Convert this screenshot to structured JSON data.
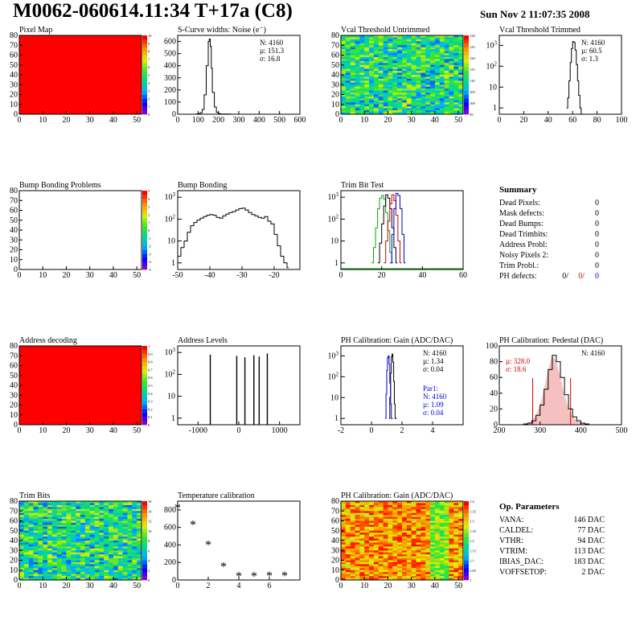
{
  "header": {
    "title": "M0062-060614.11:34 T+17a (C8)",
    "timestamp": "Sun Nov  2 11:07:35 2008"
  },
  "summary": {
    "heading": "Summary",
    "rows": [
      {
        "label": "Dead Pixels:",
        "value": "0"
      },
      {
        "label": "Mask defects:",
        "value": "0"
      },
      {
        "label": "Dead Bumps:",
        "value": "0"
      },
      {
        "label": "Dead Trimbits:",
        "value": "0"
      },
      {
        "label": "Address Probl:",
        "value": "0"
      },
      {
        "label": "Noisy Pixels 2:",
        "value": "0"
      },
      {
        "label": "Trim Probl.:",
        "value": "0"
      }
    ],
    "ph_defects": {
      "label": "PH defects:",
      "values": [
        "0/",
        "0/",
        "0"
      ],
      "colors": [
        "#000000",
        "#cc0000",
        "#0000cc"
      ]
    }
  },
  "op_parameters": {
    "heading": "Op. Parameters",
    "rows": [
      {
        "label": "VANA:",
        "value": "146 DAC"
      },
      {
        "label": "CALDEL:",
        "value": "77 DAC"
      },
      {
        "label": "VTHR:",
        "value": "94 DAC"
      },
      {
        "label": "VTRIM:",
        "value": "113 DAC"
      },
      {
        "label": "IBIAS_DAC:",
        "value": "183 DAC"
      },
      {
        "label": "VOFFSETOP:",
        "value": "2 DAC"
      }
    ]
  },
  "colors": {
    "hist_blue": "#0000cc",
    "hist_red": "#cc0000",
    "hist_green": "#00aa00",
    "map_red": "#ff0000"
  },
  "chart_data": [
    {
      "id": "pixel-map",
      "type": "heatmap",
      "title": "Pixel Map",
      "xlim": [
        0,
        52
      ],
      "ylim": [
        0,
        80
      ],
      "xticks": [
        0,
        10,
        20,
        30,
        40,
        50
      ],
      "yticks": [
        0,
        10,
        20,
        30,
        40,
        50,
        60,
        70,
        80
      ],
      "zlim": [
        0,
        10
      ],
      "zticks": [
        "0",
        "1",
        "2",
        "3",
        "4",
        "5",
        "6",
        "7",
        "8",
        "9",
        "10"
      ],
      "fill": "uniform",
      "value": 10
    },
    {
      "id": "scurve-noise",
      "type": "line",
      "title": "S-Curve widths: Noise (e⁻)",
      "xlim": [
        0,
        600
      ],
      "ylim": [
        0,
        650
      ],
      "xticks": [
        0,
        100,
        200,
        300,
        400,
        500,
        600
      ],
      "yticks": [
        0,
        100,
        200,
        300,
        400,
        500,
        600
      ],
      "stats": [
        "N: 4160",
        "µ: 151.3",
        "σ: 16.8"
      ],
      "x": [
        80,
        90,
        100,
        110,
        120,
        130,
        140,
        150,
        155,
        160,
        165,
        170,
        180,
        190,
        200,
        210,
        230,
        260
      ],
      "y": [
        0,
        2,
        5,
        12,
        40,
        160,
        400,
        600,
        620,
        560,
        380,
        180,
        60,
        15,
        5,
        2,
        1,
        0
      ]
    },
    {
      "id": "vcal-untrimmed",
      "type": "heatmap",
      "title": "Vcal Threshold Untrimmed",
      "xlim": [
        0,
        52
      ],
      "ylim": [
        0,
        80
      ],
      "xticks": [
        0,
        10,
        20,
        30,
        40,
        50
      ],
      "yticks": [
        0,
        10,
        20,
        30,
        40,
        50,
        60,
        70,
        80
      ],
      "zlim": [
        95,
        130
      ],
      "zticks": [
        "95",
        "100",
        "105",
        "110",
        "115",
        "120",
        "125",
        "130"
      ],
      "fill": "noise",
      "center": 108
    },
    {
      "id": "vcal-trimmed",
      "type": "line",
      "title": "Vcal Threshold Trimmed",
      "xlim": [
        0,
        100
      ],
      "ylog": true,
      "ylim": [
        0.5,
        3000
      ],
      "xticks": [
        0,
        20,
        40,
        60,
        80,
        100
      ],
      "yticks_log": [
        1,
        10,
        100,
        1000
      ],
      "stats": [
        "N: 4160",
        "µ: 60.5",
        "σ:  1.3"
      ],
      "x": [
        55,
        56,
        57,
        58,
        59,
        60,
        61,
        62,
        63,
        64,
        65,
        66,
        67
      ],
      "y": [
        1,
        3,
        20,
        150,
        700,
        1500,
        1400,
        600,
        120,
        20,
        4,
        1,
        0
      ]
    },
    {
      "id": "bump-bonding-problems",
      "type": "heatmap",
      "title": "Bump Bonding Problems",
      "xlim": [
        0,
        52
      ],
      "ylim": [
        0,
        80
      ],
      "xticks": [
        0,
        10,
        20,
        30,
        40,
        50
      ],
      "yticks": [
        0,
        10,
        20,
        30,
        40,
        50,
        60,
        70,
        80
      ],
      "zlim": [
        -5,
        5
      ],
      "zticks": [
        "-5",
        "-4",
        "-3",
        "-2",
        "-1",
        "0",
        "1",
        "2",
        "3",
        "4",
        "5"
      ],
      "fill": "empty"
    },
    {
      "id": "bump-bonding",
      "type": "line",
      "title": "Bump Bonding",
      "xlim": [
        -50,
        -12
      ],
      "ylog": true,
      "ylim": [
        0.5,
        2000
      ],
      "xticks": [
        -50,
        -40,
        -30,
        -20
      ],
      "yticks_log": [
        1,
        10,
        100,
        1000
      ],
      "x": [
        -50,
        -49,
        -48,
        -47,
        -46,
        -45,
        -44,
        -43,
        -42,
        -41,
        -40,
        -39,
        -38,
        -37,
        -36,
        -35,
        -34,
        -33,
        -32,
        -31,
        -30,
        -29,
        -28,
        -27,
        -26,
        -25,
        -24,
        -23,
        -22,
        -21,
        -20,
        -19,
        -18,
        -17,
        -16
      ],
      "y": [
        2,
        5,
        10,
        25,
        50,
        70,
        90,
        110,
        130,
        150,
        160,
        150,
        120,
        110,
        140,
        170,
        200,
        220,
        260,
        300,
        320,
        260,
        200,
        160,
        140,
        120,
        110,
        130,
        80,
        60,
        20,
        6,
        2,
        1,
        0.6
      ]
    },
    {
      "id": "trim-bit-test",
      "type": "line",
      "title": "Trim Bit Test",
      "xlim": [
        0,
        60
      ],
      "ylog": true,
      "ylim": [
        0.5,
        2000
      ],
      "xticks": [
        0,
        20,
        40,
        60
      ],
      "yticks_log": [
        1,
        10,
        100,
        1000
      ],
      "series": [
        {
          "color": "#00aa00",
          "x": [
            15,
            16,
            17,
            18,
            19,
            20,
            21,
            22,
            23,
            24,
            25
          ],
          "y": [
            1,
            5,
            40,
            300,
            900,
            1200,
            800,
            200,
            30,
            3,
            1
          ]
        },
        {
          "color": "#000000",
          "x": [
            18,
            19,
            20,
            21,
            22,
            23,
            24,
            25,
            26,
            27
          ],
          "y": [
            1,
            8,
            60,
            400,
            1300,
            900,
            300,
            40,
            5,
            1
          ]
        },
        {
          "color": "#cc0000",
          "x": [
            21,
            22,
            23,
            24,
            25,
            26,
            27,
            28,
            29
          ],
          "y": [
            1,
            10,
            80,
            500,
            1300,
            700,
            150,
            10,
            1
          ]
        },
        {
          "color": "#0000cc",
          "x": [
            24,
            25,
            26,
            27,
            28,
            29,
            30,
            31
          ],
          "y": [
            1,
            20,
            300,
            1500,
            1200,
            300,
            20,
            1
          ]
        }
      ]
    },
    {
      "id": "address-decoding",
      "type": "heatmap",
      "title": "Address decoding",
      "xlim": [
        0,
        52
      ],
      "ylim": [
        0,
        80
      ],
      "xticks": [
        0,
        10,
        20,
        30,
        40,
        50
      ],
      "yticks": [
        0,
        10,
        20,
        30,
        40,
        50,
        60,
        70,
        80
      ],
      "zlim": [
        0,
        1
      ],
      "zticks": [
        "0",
        "0.1",
        "0.2",
        "0.3",
        "0.4",
        "0.5",
        "0.6",
        "0.7",
        "0.8",
        "0.9",
        "1"
      ],
      "fill": "uniform",
      "value": 1
    },
    {
      "id": "address-levels",
      "type": "bar",
      "title": "Address Levels",
      "xlim": [
        -1500,
        1500
      ],
      "ylog": true,
      "ylim": [
        0.5,
        2000
      ],
      "xticks": [
        -1000,
        0,
        1000
      ],
      "yticks_log": [
        1,
        10,
        100,
        1000
      ],
      "peaks": [
        -700,
        -50,
        150,
        370,
        500,
        700
      ],
      "peak_values": [
        800,
        700,
        600,
        750,
        650,
        900
      ]
    },
    {
      "id": "ph-gain",
      "type": "line",
      "title": "PH Calibration: Gain (ADC/DAC)",
      "xlim": [
        -2,
        6
      ],
      "ylog": true,
      "ylim": [
        0.5,
        3000
      ],
      "xticks": [
        -2,
        0,
        2,
        4
      ],
      "yticks_log": [
        1,
        10,
        100,
        1000
      ],
      "stats": [
        "N: 4160",
        "µ: 1.34",
        "σ: 0.04"
      ],
      "fit_stats": [
        "Par1:",
        "N: 4160",
        "µ: 1.09",
        "σ: 0.04"
      ],
      "series": [
        {
          "color": "#000000",
          "x": [
            1.15,
            1.2,
            1.25,
            1.3,
            1.35,
            1.4,
            1.45,
            1.5,
            1.55
          ],
          "y": [
            1,
            10,
            150,
            900,
            1200,
            500,
            60,
            5,
            1
          ]
        },
        {
          "color": "#0000cc",
          "x": [
            0.9,
            0.95,
            1.0,
            1.05,
            1.1,
            1.15,
            1.2,
            1.25,
            1.3
          ],
          "y": [
            1,
            15,
            200,
            800,
            1000,
            400,
            50,
            5,
            1
          ]
        }
      ]
    },
    {
      "id": "ph-pedestal",
      "type": "line",
      "title": "PH Calibration: Pedestal (DAC)",
      "xlim": [
        200,
        500
      ],
      "ylim": [
        0,
        100
      ],
      "xticks": [
        200,
        300,
        400,
        500
      ],
      "yticks": [
        0,
        20,
        40,
        60,
        80,
        100
      ],
      "stats": [
        "N: 4160"
      ],
      "stats_red": [
        "µ: 328.0",
        "σ: 18.6"
      ],
      "markers": [
        282,
        375
      ],
      "x": [
        250,
        260,
        270,
        280,
        290,
        300,
        310,
        320,
        330,
        340,
        350,
        360,
        370,
        380,
        390,
        400,
        410,
        420
      ],
      "y": [
        0,
        1,
        2,
        5,
        12,
        25,
        45,
        70,
        88,
        80,
        60,
        38,
        20,
        10,
        5,
        2,
        1,
        0
      ]
    },
    {
      "id": "trim-bits",
      "type": "heatmap",
      "title": "Trim Bits",
      "xlim": [
        0,
        52
      ],
      "ylim": [
        0,
        80
      ],
      "xticks": [
        0,
        10,
        20,
        30,
        40,
        50
      ],
      "yticks": [
        0,
        10,
        20,
        30,
        40,
        50,
        60,
        70,
        80
      ],
      "zlim": [
        0,
        16
      ],
      "zticks": [
        "0",
        "2",
        "4",
        "6",
        "8",
        "10",
        "12",
        "14",
        "16"
      ],
      "fill": "noise",
      "center": 7
    },
    {
      "id": "temperature-calibration",
      "type": "scatter",
      "title": "Temperature calibration",
      "xlim": [
        0,
        8
      ],
      "ylim": [
        0,
        900
      ],
      "xticks": [
        0,
        2,
        4,
        6
      ],
      "yticks": [
        0,
        200,
        400,
        600,
        800
      ],
      "x": [
        0,
        1,
        2,
        3,
        4,
        5,
        6,
        7
      ],
      "y": [
        820,
        630,
        400,
        150,
        40,
        40,
        45,
        45
      ]
    },
    {
      "id": "ph-gain-map",
      "type": "heatmap",
      "title": "PH Calibration: Gain (ADC/DAC)",
      "xlim": [
        0,
        52
      ],
      "ylim": [
        0,
        80
      ],
      "xticks": [
        0,
        10,
        20,
        30,
        40,
        50
      ],
      "yticks": [
        0,
        10,
        20,
        30,
        40,
        50,
        60,
        70,
        80
      ],
      "zlim": [
        1,
        1.4
      ],
      "zticks": [
        "1",
        "1.05",
        "1.1",
        "1.15",
        "1.2",
        "1.25",
        "1.3",
        "1.35",
        "1.4"
      ],
      "fill": "columns"
    }
  ]
}
